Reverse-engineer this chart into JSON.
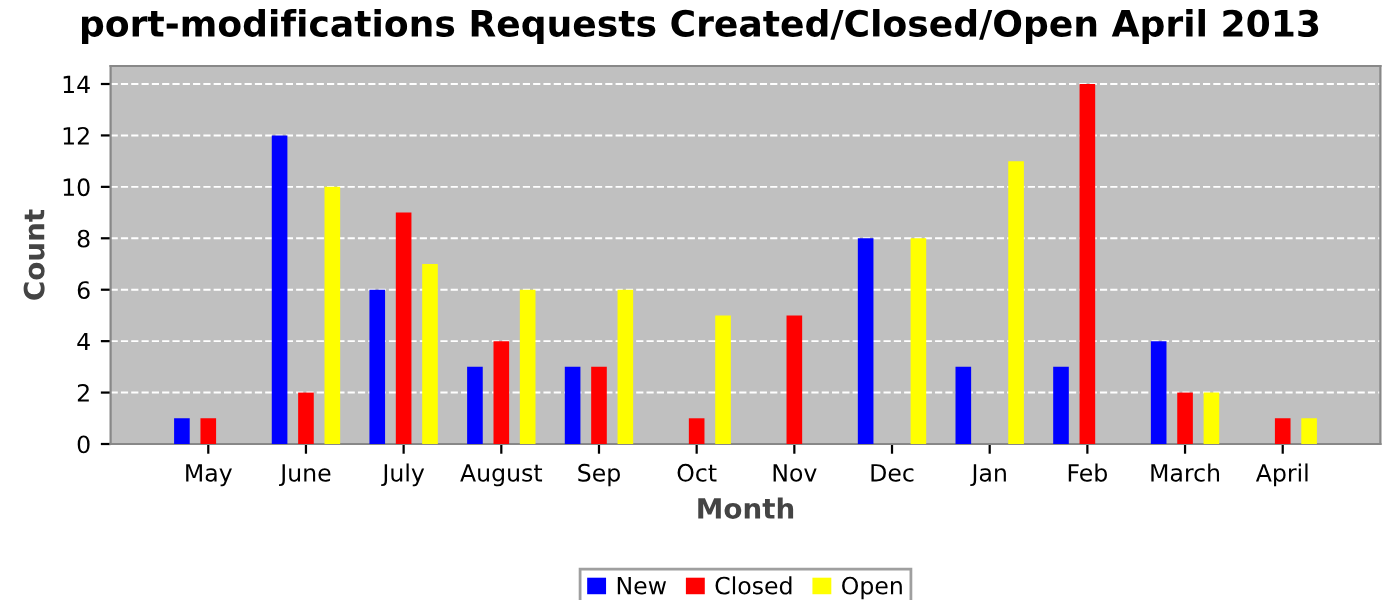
{
  "chart_data": {
    "type": "bar",
    "title": "port-modifications Requests Created/Closed/Open April 2013",
    "xlabel": "Month",
    "ylabel": "Count",
    "categories": [
      "May",
      "June",
      "July",
      "August",
      "Sep",
      "Oct",
      "Nov",
      "Dec",
      "Jan",
      "Feb",
      "March",
      "April"
    ],
    "series": [
      {
        "name": "New",
        "color": "#0000ff",
        "values": [
          1,
          12,
          6,
          3,
          3,
          0,
          0,
          8,
          3,
          3,
          4,
          0
        ]
      },
      {
        "name": "Closed",
        "color": "#ff0000",
        "values": [
          1,
          2,
          9,
          4,
          3,
          1,
          5,
          0,
          0,
          14,
          2,
          1
        ]
      },
      {
        "name": "Open",
        "color": "#ffff00",
        "values": [
          0,
          10,
          7,
          6,
          6,
          5,
          0,
          8,
          11,
          0,
          2,
          1
        ]
      }
    ],
    "ylim": [
      0,
      14.7
    ],
    "yticks": [
      0,
      2,
      4,
      6,
      8,
      10,
      12,
      14
    ],
    "grid": "y",
    "legend": "bottom"
  }
}
